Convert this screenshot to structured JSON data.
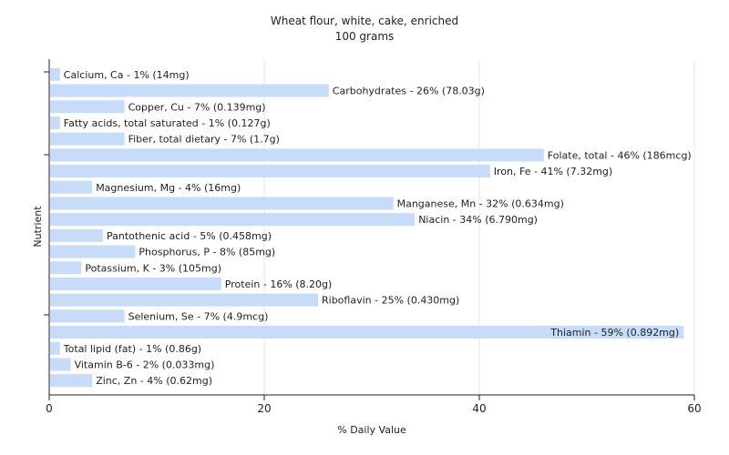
{
  "chart_data": {
    "type": "bar",
    "orientation": "horizontal",
    "title": "Wheat flour, white, cake, enriched",
    "subtitle": "100 grams",
    "xlabel": "% Daily Value",
    "ylabel": "Nutrient",
    "xlim": [
      0,
      60
    ],
    "xticks": [
      "0",
      "20",
      "40",
      "60"
    ],
    "grid": true,
    "bar_color": "#c6dcf8",
    "categories": [
      "Calcium, Ca",
      "Carbohydrates",
      "Copper, Cu",
      "Fatty acids, total saturated",
      "Fiber, total dietary",
      "Folate, total",
      "Iron, Fe",
      "Magnesium, Mg",
      "Manganese, Mn",
      "Niacin",
      "Pantothenic acid",
      "Phosphorus, P",
      "Potassium, K",
      "Protein",
      "Riboflavin",
      "Selenium, Se",
      "Thiamin",
      "Total lipid (fat)",
      "Vitamin B-6",
      "Zinc, Zn"
    ],
    "values": [
      1,
      26,
      7,
      1,
      7,
      46,
      41,
      4,
      32,
      34,
      5,
      8,
      3,
      16,
      25,
      7,
      59,
      1,
      2,
      4
    ],
    "labels": [
      "Calcium, Ca - 1% (14mg)",
      "Carbohydrates - 26% (78.03g)",
      "Copper, Cu - 7% (0.139mg)",
      "Fatty acids, total saturated - 1% (0.127g)",
      "Fiber, total dietary - 7% (1.7g)",
      "Folate, total - 46% (186mcg)",
      "Iron, Fe - 41% (7.32mg)",
      "Magnesium, Mg - 4% (16mg)",
      "Manganese, Mn - 32% (0.634mg)",
      "Niacin - 34% (6.790mg)",
      "Pantothenic acid - 5% (0.458mg)",
      "Phosphorus, P - 8% (85mg)",
      "Potassium, K - 3% (105mg)",
      "Protein - 16% (8.20g)",
      "Riboflavin - 25% (0.430mg)",
      "Selenium, Se - 7% (4.9mcg)",
      "Thiamin - 59% (0.892mg)",
      "Total lipid (fat) - 1% (0.86g)",
      "Vitamin B-6 - 2% (0.033mg)",
      "Zinc, Zn - 4% (0.62mg)"
    ]
  }
}
